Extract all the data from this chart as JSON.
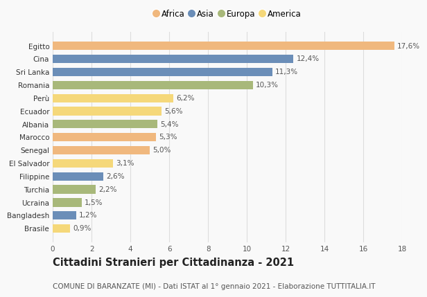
{
  "countries": [
    "Brasile",
    "Bangladesh",
    "Ucraina",
    "Turchia",
    "Filippine",
    "El Salvador",
    "Senegal",
    "Marocco",
    "Albania",
    "Ecuador",
    "Perù",
    "Romania",
    "Sri Lanka",
    "Cina",
    "Egitto"
  ],
  "values": [
    0.9,
    1.2,
    1.5,
    2.2,
    2.6,
    3.1,
    5.0,
    5.3,
    5.4,
    5.6,
    6.2,
    10.3,
    11.3,
    12.4,
    17.6
  ],
  "labels": [
    "0,9%",
    "1,2%",
    "1,5%",
    "2,2%",
    "2,6%",
    "3,1%",
    "5,0%",
    "5,3%",
    "5,4%",
    "5,6%",
    "6,2%",
    "10,3%",
    "11,3%",
    "12,4%",
    "17,6%"
  ],
  "continents": [
    "America",
    "Asia",
    "Europa",
    "Europa",
    "Asia",
    "America",
    "Africa",
    "Africa",
    "Europa",
    "America",
    "America",
    "Europa",
    "Asia",
    "Asia",
    "Africa"
  ],
  "colors": {
    "Africa": "#F0B87E",
    "Asia": "#6B8EB8",
    "Europa": "#A8B87A",
    "America": "#F5D87A"
  },
  "legend_order": [
    "Africa",
    "Asia",
    "Europa",
    "America"
  ],
  "legend_colors": [
    "#F0B87E",
    "#6B8EB8",
    "#A8B87A",
    "#F5D87A"
  ],
  "title": "Cittadini Stranieri per Cittadinanza - 2021",
  "subtitle": "COMUNE DI BARANZATE (MI) - Dati ISTAT al 1° gennaio 2021 - Elaborazione TUTTITALIA.IT",
  "xlim": [
    0,
    18
  ],
  "xticks": [
    0,
    2,
    4,
    6,
    8,
    10,
    12,
    14,
    16,
    18
  ],
  "background_color": "#f9f9f9",
  "grid_color": "#dddddd",
  "bar_height": 0.65,
  "title_fontsize": 10.5,
  "subtitle_fontsize": 7.5,
  "label_fontsize": 7.5,
  "tick_fontsize": 7.5,
  "legend_fontsize": 8.5
}
